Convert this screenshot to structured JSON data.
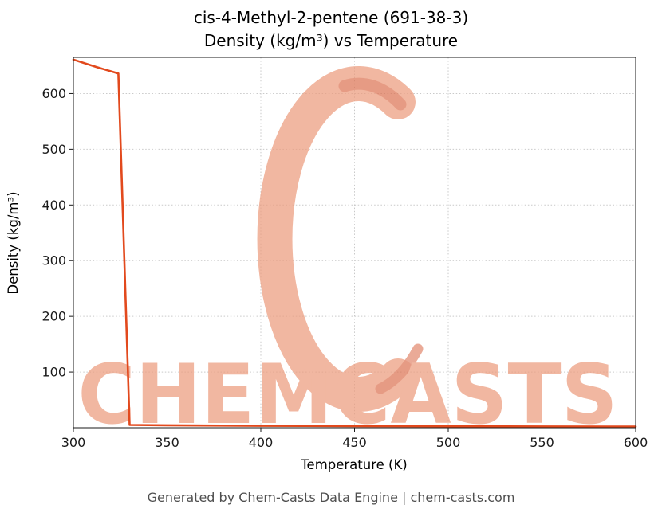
{
  "header": {
    "title_line1": "cis-4-Methyl-2-pentene (691-38-3)",
    "title_line2": "Density (kg/m³) vs Temperature"
  },
  "footer": {
    "text": "Generated by Chem-Casts Data Engine | chem-casts.com"
  },
  "watermark": {
    "text": "CHEMCASTS",
    "logo": "c-swirl-logo",
    "color": "#ec9b7c",
    "accent_color": "#d96a4a"
  },
  "chart_data": {
    "type": "line",
    "title": "cis-4-Methyl-2-pentene (691-38-3) — Density (kg/m³) vs Temperature",
    "xlabel": "Temperature (K)",
    "ylabel": "Density (kg/m³)",
    "xlim": [
      300,
      600
    ],
    "ylim": [
      0,
      665
    ],
    "x_ticks": [
      300,
      350,
      400,
      450,
      500,
      550,
      600
    ],
    "y_ticks": [
      100,
      200,
      300,
      400,
      500,
      600
    ],
    "grid": true,
    "legend": false,
    "line_color": "#e2491d",
    "series": [
      {
        "name": "Density",
        "x": [
          300,
          312,
          324,
          330,
          350,
          400,
          450,
          500,
          550,
          600
        ],
        "y": [
          661,
          648,
          636,
          5,
          4.5,
          3.5,
          3,
          2.6,
          2.3,
          2
        ]
      }
    ]
  }
}
